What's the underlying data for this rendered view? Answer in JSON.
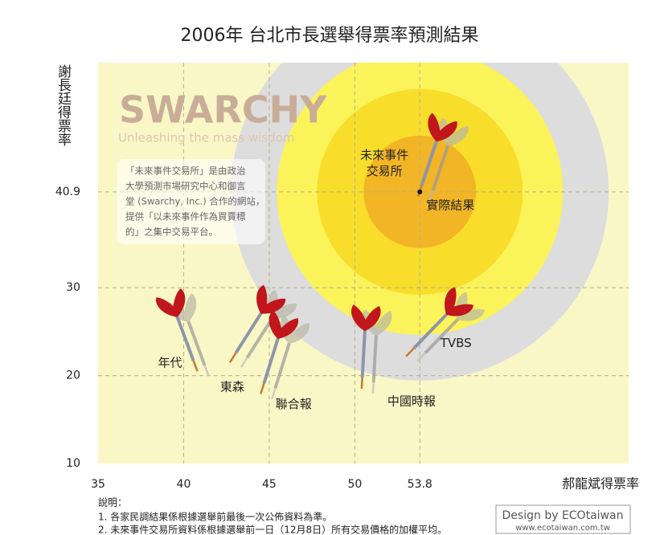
{
  "chart_data": {
    "type": "scatter",
    "title": "2006年 台北市長選舉得票率預測結果",
    "x_label": "郝龍斌得票率",
    "y_label": "謝長廷得票率",
    "xlim": [
      35,
      66
    ],
    "ylim": [
      10,
      55.6
    ],
    "xticks": [
      35,
      40,
      45,
      50,
      53.8
    ],
    "yticks": [
      10,
      20,
      30,
      40.9
    ],
    "grid": true,
    "labels": [
      "年代",
      "東森",
      "聯合報",
      "中國時報",
      "TVBS",
      "未來事件交易所"
    ],
    "x": [
      40.8,
      42.7,
      44.5,
      50.4,
      53.0,
      53.7
    ],
    "y": [
      20.5,
      21.5,
      17.9,
      18.5,
      22.2,
      40.4
    ],
    "color": "#c0161c",
    "actual": {
      "label": "實際結果",
      "x": 53.8,
      "y": 40.9
    }
  },
  "logo": {
    "name": "SWARCHY",
    "tagline": "Unleashing the mass wisdom"
  },
  "info_box": {
    "lines": [
      "「未來事件交易所」是由政治",
      "大學預測市場研究中心和御言",
      "堂 (Swarchy, Inc.) 合作的網站，",
      "提供「以未來事件作為買賣標",
      "的」之集中交易平台。"
    ]
  },
  "notes": {
    "heading": "說明：",
    "lines": [
      "1. 各家民調結果係根據選舉前最後一次公佈資料為準。",
      "2. 未來事件交易所資料係根據選舉前一日（12月8日）所有交易價格的加權平均。"
    ]
  },
  "credit": {
    "title": "Design by ECOtaiwan",
    "url": "www.ecotaiwan.com.tw"
  }
}
